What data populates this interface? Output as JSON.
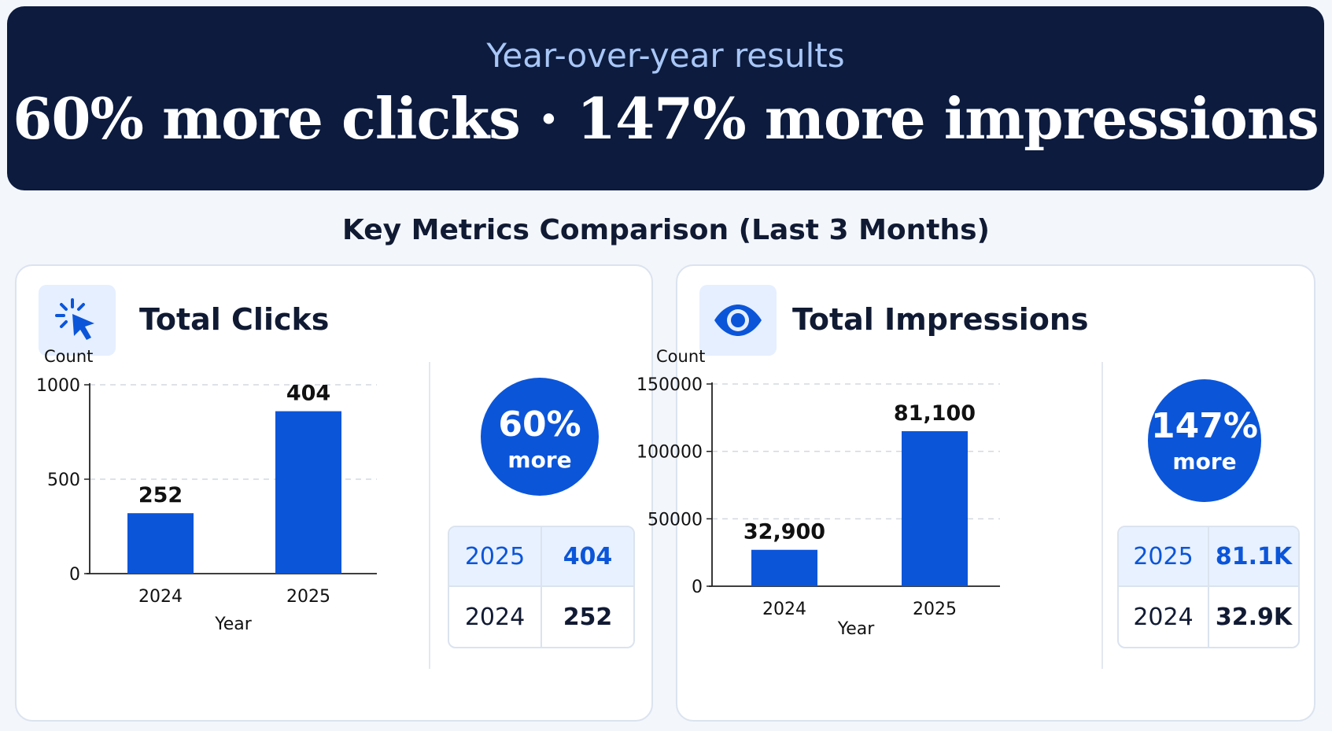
{
  "banner": {
    "subtitle": "Year-over-year results",
    "headline": "60% more clicks · 147% more impressions"
  },
  "section_title": "Key Metrics Comparison (Last 3 Months)",
  "colors": {
    "banner_bg": "#0c1b3e",
    "accent_blue": "#0b55d9",
    "subtitle": "#a8c6f6"
  },
  "cards": [
    {
      "title": "Total Clicks",
      "icon": "cursor-click-icon",
      "badge": {
        "pct": "60%",
        "word": "more"
      },
      "table": [
        {
          "year": "2025",
          "value": "404"
        },
        {
          "year": "2024",
          "value": "252"
        }
      ]
    },
    {
      "title": "Total Impressions",
      "icon": "eye-icon",
      "badge": {
        "pct": "147%",
        "word": "more"
      },
      "table": [
        {
          "year": "2025",
          "value": "81.1K"
        },
        {
          "year": "2024",
          "value": "32.9K"
        }
      ]
    }
  ],
  "chart_data": [
    {
      "type": "bar",
      "title": "Total Clicks",
      "categories": [
        "2024",
        "2025"
      ],
      "values": [
        252,
        404
      ],
      "bar_heights_shown": [
        320,
        860
      ],
      "data_labels": [
        "252",
        "404"
      ],
      "xlabel": "Year",
      "ylabel": "Count",
      "yticks": [
        "0",
        "500",
        "1000"
      ],
      "ytick_values": [
        0,
        500,
        1000
      ],
      "ylim": [
        0,
        1000
      ],
      "grid": "dashed-horizontal",
      "color": "#0b55d9"
    },
    {
      "type": "bar",
      "title": "Total Impressions",
      "categories": [
        "2024",
        "2025"
      ],
      "values": [
        32900,
        81100
      ],
      "bar_heights_shown": [
        27000,
        115000
      ],
      "data_labels": [
        "32,900",
        "81,100"
      ],
      "xlabel": "Year",
      "ylabel": "Count",
      "yticks": [
        "0",
        "50000",
        "100000",
        "150000"
      ],
      "ytick_values": [
        0,
        50000,
        100000,
        150000
      ],
      "ylim": [
        0,
        150000
      ],
      "grid": "dashed-horizontal",
      "color": "#0b55d9"
    }
  ]
}
